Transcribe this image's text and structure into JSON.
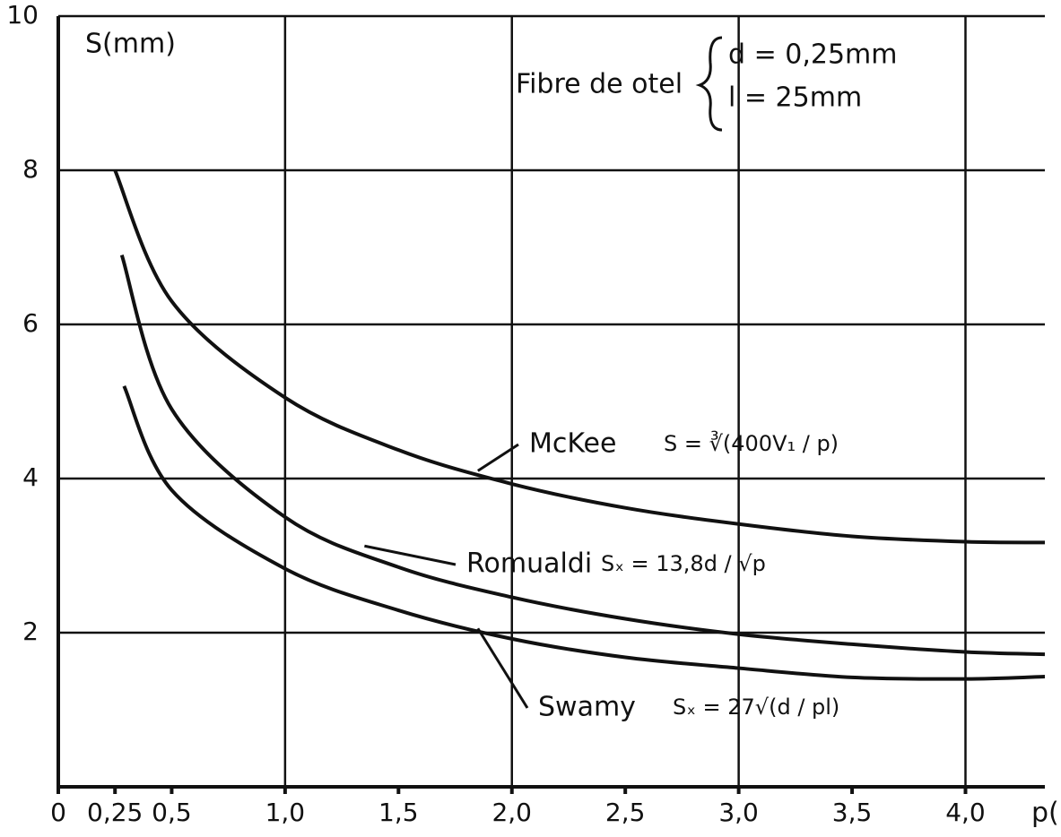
{
  "chart_data": {
    "type": "line",
    "y_label": "S(mm)",
    "x_label": "p(",
    "note": {
      "title": "Fibre de otel",
      "lines": [
        "d = 0,25mm",
        "l = 25mm"
      ]
    },
    "xlim": [
      0,
      4.35
    ],
    "ylim": [
      0,
      10
    ],
    "xticks": [
      0,
      {
        "value": 0.25,
        "label": "0,25"
      },
      {
        "value": 0.5,
        "label": "0,5"
      },
      {
        "value": 1,
        "label": "1,0"
      },
      {
        "value": 1.5,
        "label": "1,5"
      },
      {
        "value": 2,
        "label": "2,0"
      },
      {
        "value": 2.5,
        "label": "2,5"
      },
      {
        "value": 3,
        "label": "3,0"
      },
      {
        "value": 3.5,
        "label": "3,5"
      },
      {
        "value": 4,
        "label": "4,0"
      }
    ],
    "yticks": [
      2,
      4,
      6,
      8,
      10
    ],
    "grid": true,
    "color": "#111111",
    "series": [
      {
        "name": "McKee",
        "formula": "S = ∛(400V₁ / p)",
        "x": [
          0.25,
          0.5,
          1,
          1.5,
          2,
          2.5,
          3,
          3.5,
          4,
          4.35
        ],
        "values": [
          8.0,
          6.3,
          5.05,
          4.37,
          3.93,
          3.62,
          3.41,
          3.25,
          3.18,
          3.17
        ]
      },
      {
        "name": "Romualdi",
        "formula": "Sₓ = 13,8d / √p",
        "x": [
          0.28,
          0.5,
          1,
          1.5,
          2,
          2.5,
          3,
          3.5,
          4,
          4.35
        ],
        "values": [
          6.9,
          4.9,
          3.5,
          2.85,
          2.46,
          2.18,
          1.98,
          1.85,
          1.75,
          1.72
        ]
      },
      {
        "name": "Swamy",
        "formula": "Sₓ = 27√(d / pl)",
        "x": [
          0.29,
          0.5,
          1,
          1.5,
          2,
          2.5,
          3,
          3.5,
          4,
          4.35
        ],
        "values": [
          5.2,
          3.85,
          2.83,
          2.29,
          1.92,
          1.68,
          1.54,
          1.42,
          1.4,
          1.43
        ]
      }
    ]
  }
}
